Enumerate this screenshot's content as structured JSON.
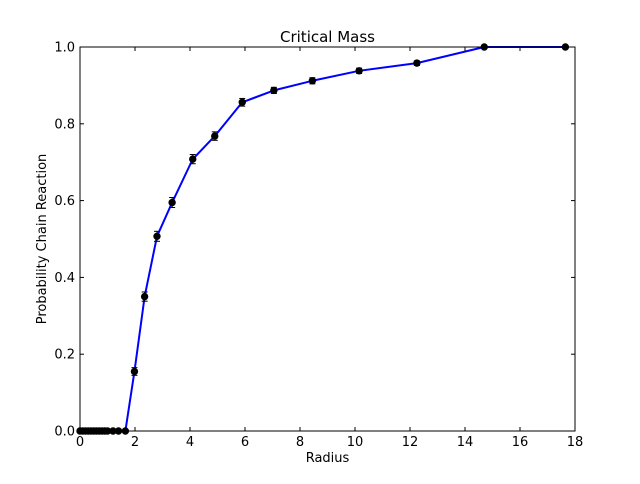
{
  "chart_data": {
    "type": "line",
    "title": "Critical Mass",
    "xlabel": "Radius",
    "ylabel": "Probability Chain Reaction",
    "xlim": [
      0,
      18
    ],
    "ylim": [
      0,
      1.0
    ],
    "xticks": [
      0,
      2,
      4,
      6,
      8,
      10,
      12,
      14,
      16,
      18
    ],
    "yticks": [
      0.0,
      0.2,
      0.4,
      0.6,
      0.8,
      1.0
    ],
    "xtick_labels": [
      "0",
      "2",
      "4",
      "6",
      "8",
      "10",
      "12",
      "14",
      "16",
      "18"
    ],
    "ytick_labels": [
      "0.0",
      "0.2",
      "0.4",
      "0.6",
      "0.8",
      "1.0"
    ],
    "grid": false,
    "series": [
      {
        "line_color": "#0000ff",
        "marker_color": "#000000",
        "x": [
          0.0,
          0.1,
          0.2,
          0.3,
          0.4,
          0.5,
          0.6,
          0.7,
          0.8,
          0.9,
          1.0,
          1.2,
          1.4,
          1.65,
          1.98,
          2.35,
          2.8,
          3.35,
          4.1,
          4.9,
          5.9,
          7.05,
          8.45,
          10.15,
          12.25,
          14.7,
          17.65
        ],
        "y": [
          0.0,
          0.0,
          0.0,
          0.0,
          0.0,
          0.0,
          0.0,
          0.0,
          0.0,
          0.0,
          0.0,
          0.0,
          0.0,
          0.0,
          0.155,
          0.35,
          0.507,
          0.595,
          0.708,
          0.768,
          0.856,
          0.887,
          0.912,
          0.938,
          0.958,
          1.0,
          1.0
        ],
        "yerr": [
          0,
          0,
          0,
          0,
          0,
          0,
          0,
          0,
          0,
          0,
          0,
          0,
          0,
          0,
          0.01,
          0.012,
          0.013,
          0.013,
          0.012,
          0.011,
          0.01,
          0.008,
          0.008,
          0.007,
          0.006,
          0,
          0
        ]
      }
    ]
  }
}
